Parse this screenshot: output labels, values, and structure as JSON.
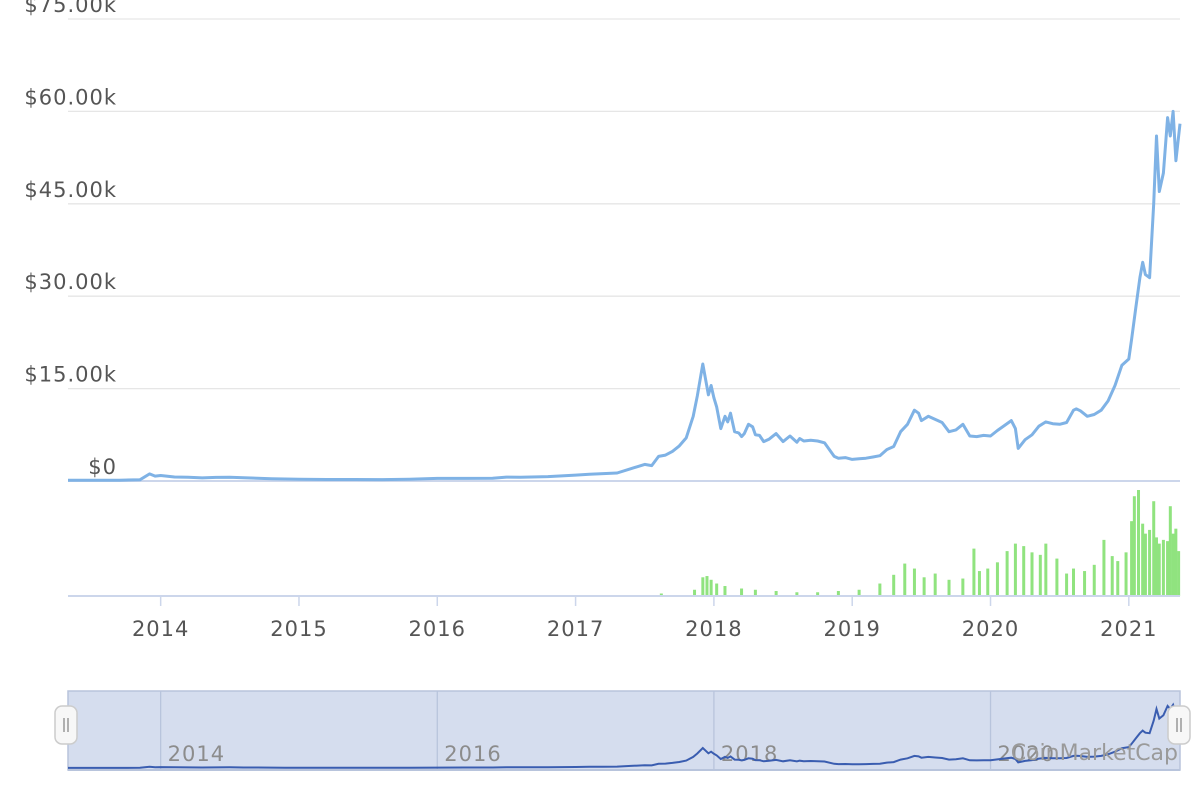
{
  "chart_data": {
    "type": "line",
    "title": "",
    "watermark": "CoinMarketCap",
    "price_axis": {
      "ticks": [
        "$0",
        "$15.00k",
        "$30.00k",
        "$45.00k",
        "$60.00k",
        "$75.00k"
      ],
      "tick_values": [
        0,
        15000,
        30000,
        45000,
        60000,
        75000
      ],
      "ylim": [
        0,
        75000
      ]
    },
    "x_axis": {
      "tick_labels": [
        "2014",
        "2015",
        "2016",
        "2017",
        "2018",
        "2019",
        "2020",
        "2021"
      ],
      "tick_values": [
        2014,
        2015,
        2016,
        2017,
        2018,
        2019,
        2020,
        2021
      ],
      "xlim": [
        2013.33,
        2021.37
      ]
    },
    "navigator_axis": {
      "tick_labels": [
        "2014",
        "2016",
        "2018",
        "2020"
      ],
      "tick_values": [
        2014,
        2016,
        2018,
        2020
      ]
    },
    "grid": true,
    "colors": {
      "price_line": "#7fb2e5",
      "volume_bars": "#90e37f",
      "navigator_line": "#3a5db0",
      "navigator_fill": "#d5ddee",
      "navigator_border": "#b8c4dc",
      "gridline": "#e6e6e6",
      "axis_line": "#ccd6eb"
    },
    "series": [
      {
        "x": [
          2013.33,
          2013.5,
          2013.7,
          2013.85,
          2013.92,
          2013.96,
          2014.0,
          2014.1,
          2014.2,
          2014.3,
          2014.4,
          2014.5,
          2014.6,
          2014.7,
          2014.8,
          2014.9,
          2015.0,
          2015.2,
          2015.4,
          2015.6,
          2015.8,
          2016.0,
          2016.2,
          2016.4,
          2016.5,
          2016.6,
          2016.8,
          2017.0,
          2017.1,
          2017.2,
          2017.3,
          2017.4,
          2017.5,
          2017.55,
          2017.6,
          2017.65,
          2017.7,
          2017.75,
          2017.8,
          2017.85,
          2017.88,
          2017.92,
          2017.96,
          2017.98,
          2018.0,
          2018.02,
          2018.05,
          2018.08,
          2018.1,
          2018.12,
          2018.15,
          2018.18,
          2018.2,
          2018.22,
          2018.25,
          2018.28,
          2018.3,
          2018.33,
          2018.36,
          2018.4,
          2018.45,
          2018.5,
          2018.55,
          2018.6,
          2018.62,
          2018.65,
          2018.7,
          2018.75,
          2018.8,
          2018.87,
          2018.9,
          2018.95,
          2019.0,
          2019.05,
          2019.1,
          2019.15,
          2019.2,
          2019.25,
          2019.3,
          2019.35,
          2019.4,
          2019.45,
          2019.48,
          2019.5,
          2019.55,
          2019.6,
          2019.65,
          2019.7,
          2019.75,
          2019.8,
          2019.85,
          2019.9,
          2019.95,
          2020.0,
          2020.05,
          2020.1,
          2020.15,
          2020.18,
          2020.2,
          2020.25,
          2020.3,
          2020.35,
          2020.4,
          2020.45,
          2020.5,
          2020.55,
          2020.6,
          2020.62,
          2020.65,
          2020.7,
          2020.75,
          2020.8,
          2020.85,
          2020.9,
          2020.95,
          2021.0,
          2021.02,
          2021.05,
          2021.08,
          2021.1,
          2021.12,
          2021.15,
          2021.18,
          2021.2,
          2021.22,
          2021.25,
          2021.28,
          2021.3,
          2021.32,
          2021.34,
          2021.37
        ],
        "y": [
          120,
          110,
          130,
          200,
          1150,
          800,
          900,
          650,
          600,
          500,
          580,
          620,
          520,
          450,
          380,
          330,
          280,
          240,
          250,
          230,
          300,
          420,
          430,
          450,
          640,
          620,
          720,
          960,
          1100,
          1200,
          1300,
          2000,
          2700,
          2500,
          4000,
          4200,
          4800,
          5700,
          7000,
          10500,
          13800,
          19000,
          14000,
          15500,
          13500,
          12000,
          8500,
          10500,
          9600,
          11000,
          8000,
          7800,
          7200,
          7700,
          9200,
          8800,
          7500,
          7400,
          6400,
          6800,
          7700,
          6400,
          7300,
          6300,
          6900,
          6500,
          6600,
          6500,
          6200,
          4000,
          3700,
          3800,
          3500,
          3600,
          3700,
          3900,
          4100,
          5100,
          5600,
          8000,
          9200,
          11500,
          11000,
          9800,
          10500,
          10000,
          9500,
          8000,
          8300,
          9200,
          7300,
          7200,
          7400,
          7300,
          8200,
          9000,
          9800,
          8500,
          5300,
          6700,
          7500,
          8900,
          9600,
          9300,
          9200,
          9500,
          11500,
          11700,
          11400,
          10500,
          10800,
          11500,
          13000,
          15500,
          18800,
          19800,
          23000,
          28000,
          33000,
          35500,
          33500,
          33000,
          45000,
          56000,
          47000,
          50000,
          59000,
          56000,
          60000,
          52000,
          58000
        ]
      }
    ],
    "volume": {
      "x": [
        2017.62,
        2017.86,
        2017.92,
        2017.95,
        2017.98,
        2018.02,
        2018.08,
        2018.2,
        2018.3,
        2018.45,
        2018.6,
        2018.75,
        2018.9,
        2019.05,
        2019.2,
        2019.3,
        2019.38,
        2019.45,
        2019.52,
        2019.6,
        2019.7,
        2019.8,
        2019.88,
        2019.92,
        2019.98,
        2020.05,
        2020.12,
        2020.18,
        2020.24,
        2020.3,
        2020.36,
        2020.4,
        2020.48,
        2020.55,
        2020.6,
        2020.68,
        2020.75,
        2020.82,
        2020.88,
        2020.92,
        2020.98,
        2021.02,
        2021.04,
        2021.07,
        2021.1,
        2021.12,
        2021.15,
        2021.18,
        2021.2,
        2021.22,
        2021.25,
        2021.28,
        2021.3,
        2021.32,
        2021.34,
        2021.36
      ],
      "values": [
        2,
        5,
        15,
        16,
        13,
        10,
        8,
        6,
        5,
        4,
        3,
        3,
        4,
        5,
        10,
        17,
        26,
        22,
        15,
        18,
        13,
        14,
        38,
        20,
        22,
        27,
        36,
        42,
        40,
        35,
        33,
        42,
        30,
        18,
        22,
        20,
        25,
        45,
        32,
        28,
        35,
        60,
        80,
        85,
        58,
        50,
        53,
        76,
        47,
        42,
        45,
        44,
        72,
        50,
        54,
        36
      ]
    }
  }
}
